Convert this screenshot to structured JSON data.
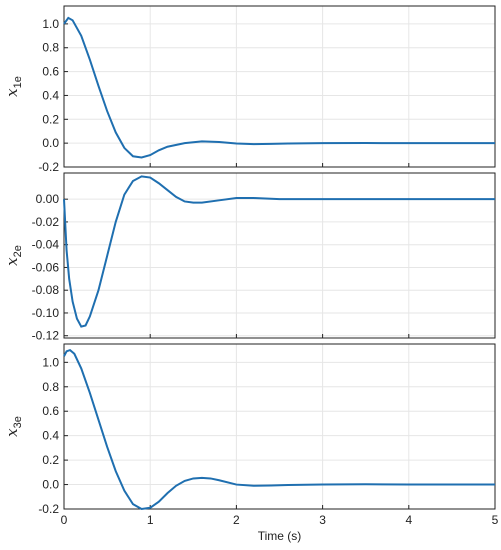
{
  "chart_data": [
    {
      "type": "line",
      "ylabel_main": "x",
      "ylabel_sub": "1e",
      "xlim": [
        0,
        5
      ],
      "ylim": [
        -0.2,
        1.15
      ],
      "yticks": [
        -0.2,
        0.0,
        0.2,
        0.4,
        0.6,
        0.8,
        1.0
      ],
      "ytick_labels": [
        "-0.2",
        "0.0",
        "0.2",
        "0.4",
        "0.6",
        "0.8",
        "1.0"
      ],
      "grid": true,
      "series": [
        {
          "color": "#1f6fb0",
          "x": [
            0,
            0.05,
            0.1,
            0.2,
            0.3,
            0.4,
            0.5,
            0.6,
            0.7,
            0.8,
            0.9,
            1.0,
            1.1,
            1.2,
            1.4,
            1.6,
            1.8,
            2.0,
            2.2,
            2.4,
            2.6,
            3.0,
            3.5,
            4.0,
            5.0
          ],
          "y": [
            1.0,
            1.05,
            1.03,
            0.9,
            0.7,
            0.48,
            0.27,
            0.09,
            -0.04,
            -0.11,
            -0.12,
            -0.1,
            -0.06,
            -0.03,
            0.0,
            0.015,
            0.01,
            -0.003,
            -0.008,
            -0.006,
            -0.003,
            0.0,
            0.001,
            0.0,
            0.0
          ]
        }
      ]
    },
    {
      "type": "line",
      "ylabel_main": "x",
      "ylabel_sub": "2e",
      "xlim": [
        0,
        5
      ],
      "ylim": [
        -0.122,
        0.023
      ],
      "yticks": [
        -0.12,
        -0.1,
        -0.08,
        -0.06,
        -0.04,
        -0.02,
        0.0
      ],
      "ytick_labels": [
        "-0.12",
        "-0.10",
        "-0.08",
        "-0.06",
        "-0.04",
        "-0.02",
        "0.00"
      ],
      "grid": true,
      "series": [
        {
          "color": "#1f6fb0",
          "x": [
            0,
            0.03,
            0.06,
            0.1,
            0.15,
            0.2,
            0.25,
            0.3,
            0.4,
            0.5,
            0.6,
            0.7,
            0.8,
            0.9,
            1.0,
            1.1,
            1.2,
            1.3,
            1.4,
            1.5,
            1.6,
            1.8,
            2.0,
            2.2,
            2.5,
            3.0,
            4.0,
            5.0
          ],
          "y": [
            0.0,
            -0.045,
            -0.07,
            -0.09,
            -0.105,
            -0.112,
            -0.111,
            -0.103,
            -0.08,
            -0.05,
            -0.02,
            0.004,
            0.016,
            0.02,
            0.019,
            0.014,
            0.008,
            0.002,
            -0.002,
            -0.003,
            -0.003,
            -0.001,
            0.001,
            0.001,
            0.0,
            0.0,
            0.0,
            0.0
          ]
        }
      ]
    },
    {
      "type": "line",
      "ylabel_main": "x",
      "ylabel_sub": "3e",
      "xlabel": "Time (s)",
      "xlim": [
        0,
        5
      ],
      "ylim": [
        -0.2,
        1.15
      ],
      "xticks": [
        0,
        1,
        2,
        3,
        4,
        5
      ],
      "xtick_labels": [
        "0",
        "1",
        "2",
        "3",
        "4",
        "5"
      ],
      "yticks": [
        -0.2,
        0.0,
        0.2,
        0.4,
        0.6,
        0.8,
        1.0
      ],
      "ytick_labels": [
        "-0.2",
        "0.0",
        "0.2",
        "0.4",
        "0.6",
        "0.8",
        "1.0"
      ],
      "grid": true,
      "series": [
        {
          "color": "#1f6fb0",
          "x": [
            0,
            0.03,
            0.07,
            0.12,
            0.2,
            0.3,
            0.4,
            0.5,
            0.6,
            0.7,
            0.8,
            0.9,
            1.0,
            1.1,
            1.2,
            1.3,
            1.4,
            1.5,
            1.6,
            1.7,
            1.8,
            2.0,
            2.2,
            2.4,
            2.6,
            3.0,
            3.5,
            4.0,
            5.0
          ],
          "y": [
            1.05,
            1.09,
            1.1,
            1.07,
            0.95,
            0.75,
            0.53,
            0.31,
            0.11,
            -0.05,
            -0.16,
            -0.2,
            -0.19,
            -0.14,
            -0.07,
            -0.01,
            0.03,
            0.05,
            0.055,
            0.05,
            0.035,
            0.0,
            -0.01,
            -0.008,
            -0.004,
            0.0,
            0.002,
            0.0,
            0.0
          ]
        }
      ]
    }
  ]
}
